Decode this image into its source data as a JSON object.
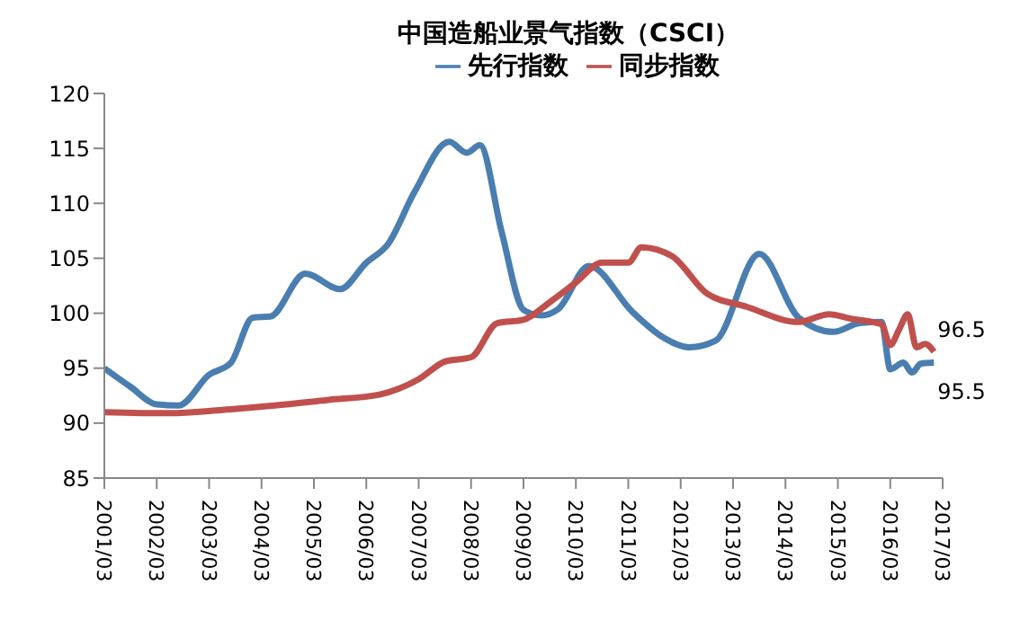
{
  "chart_data": {
    "type": "line",
    "title": "中国造船业景气指数（CSCI）",
    "legend": "top",
    "marker": "none",
    "line_style": "solid",
    "ylim": [
      85,
      120
    ],
    "yticks": [
      85,
      90,
      95,
      100,
      105,
      110,
      115,
      120
    ],
    "xlim": [
      "2001-03",
      "2017-03"
    ],
    "xticks": [
      {
        "value": "2001-03",
        "label": "2001/03"
      },
      {
        "value": "2002-03",
        "label": "2002/03"
      },
      {
        "value": "2003-03",
        "label": "2003/03"
      },
      {
        "value": "2004-03",
        "label": "2004/03"
      },
      {
        "value": "2005-03",
        "label": "2005/03"
      },
      {
        "value": "2006-03",
        "label": "2006/03"
      },
      {
        "value": "2007-03",
        "label": "2007/03"
      },
      {
        "value": "2008-03",
        "label": "2008/03"
      },
      {
        "value": "2009-03",
        "label": "2009/03"
      },
      {
        "value": "2010-03",
        "label": "2010/03"
      },
      {
        "value": "2011-03",
        "label": "2011/03"
      },
      {
        "value": "2012-03",
        "label": "2012/03"
      },
      {
        "value": "2013-03",
        "label": "2013/03"
      },
      {
        "value": "2014-03",
        "label": "2014/03"
      },
      {
        "value": "2015-03",
        "label": "2015/03"
      },
      {
        "value": "2016-03",
        "label": "2016/03"
      },
      {
        "value": "2017-03",
        "label": "2017/03"
      }
    ],
    "series": [
      {
        "name": "先行指数",
        "color": "#4a7eb0",
        "x": [
          "2001-03",
          "2001-09",
          "2002-03",
          "2002-08",
          "2003-03",
          "2003-08",
          "2004-01",
          "2004-05",
          "2005-01",
          "2005-09",
          "2006-03",
          "2006-08",
          "2007-02",
          "2007-10",
          "2008-02",
          "2008-05",
          "2008-10",
          "2009-03",
          "2009-07",
          "2009-11",
          "2010-06",
          "2011-04",
          "2011-11",
          "2012-05",
          "2012-11",
          "2013-09",
          "2014-06",
          "2015-02",
          "2015-08",
          "2016-01",
          "2016-03",
          "2016-06",
          "2016-08",
          "2016-10",
          "2017-01"
        ],
        "values": [
          95.0,
          93.3,
          91.7,
          91.6,
          94.4,
          95.5,
          99.6,
          99.7,
          103.6,
          102.2,
          104.6,
          106.3,
          111,
          115.6,
          114.6,
          115.3,
          107.4,
          100.3,
          99.8,
          100.4,
          104.3,
          100.1,
          97.8,
          96.9,
          97.5,
          105.4,
          99.6,
          98.3,
          99.1,
          99.2,
          94.9,
          95.5,
          94.6,
          95.4,
          95.5
        ]
      },
      {
        "name": "同步指数",
        "color": "#c0504d",
        "x": [
          "2001-03",
          "2002-06",
          "2003-06",
          "2004-06",
          "2005-06",
          "2006-06",
          "2007-03",
          "2007-09",
          "2008-03",
          "2008-09",
          "2009-03",
          "2009-09",
          "2010-03",
          "2010-09",
          "2011-03",
          "2011-06",
          "2012-01",
          "2012-09",
          "2013-06",
          "2014-06",
          "2015-01",
          "2015-06",
          "2016-01",
          "2016-03",
          "2016-05",
          "2016-07",
          "2016-09",
          "2016-11",
          "2017-01"
        ],
        "values": [
          91.0,
          90.9,
          91.2,
          91.6,
          92.1,
          92.6,
          94.0,
          95.6,
          96.0,
          99.1,
          99.4,
          101.0,
          102.8,
          104.6,
          104.6,
          106.0,
          105.2,
          101.8,
          100.6,
          99.2,
          99.9,
          99.5,
          99.0,
          97.1,
          98.5,
          99.9,
          96.9,
          97.2,
          96.5
        ]
      }
    ],
    "annotations": [
      {
        "text": "96.5",
        "x": "2017-01",
        "y": 96.5
      },
      {
        "text": "95.5",
        "x": "2017-01",
        "y": 95.5
      }
    ]
  }
}
